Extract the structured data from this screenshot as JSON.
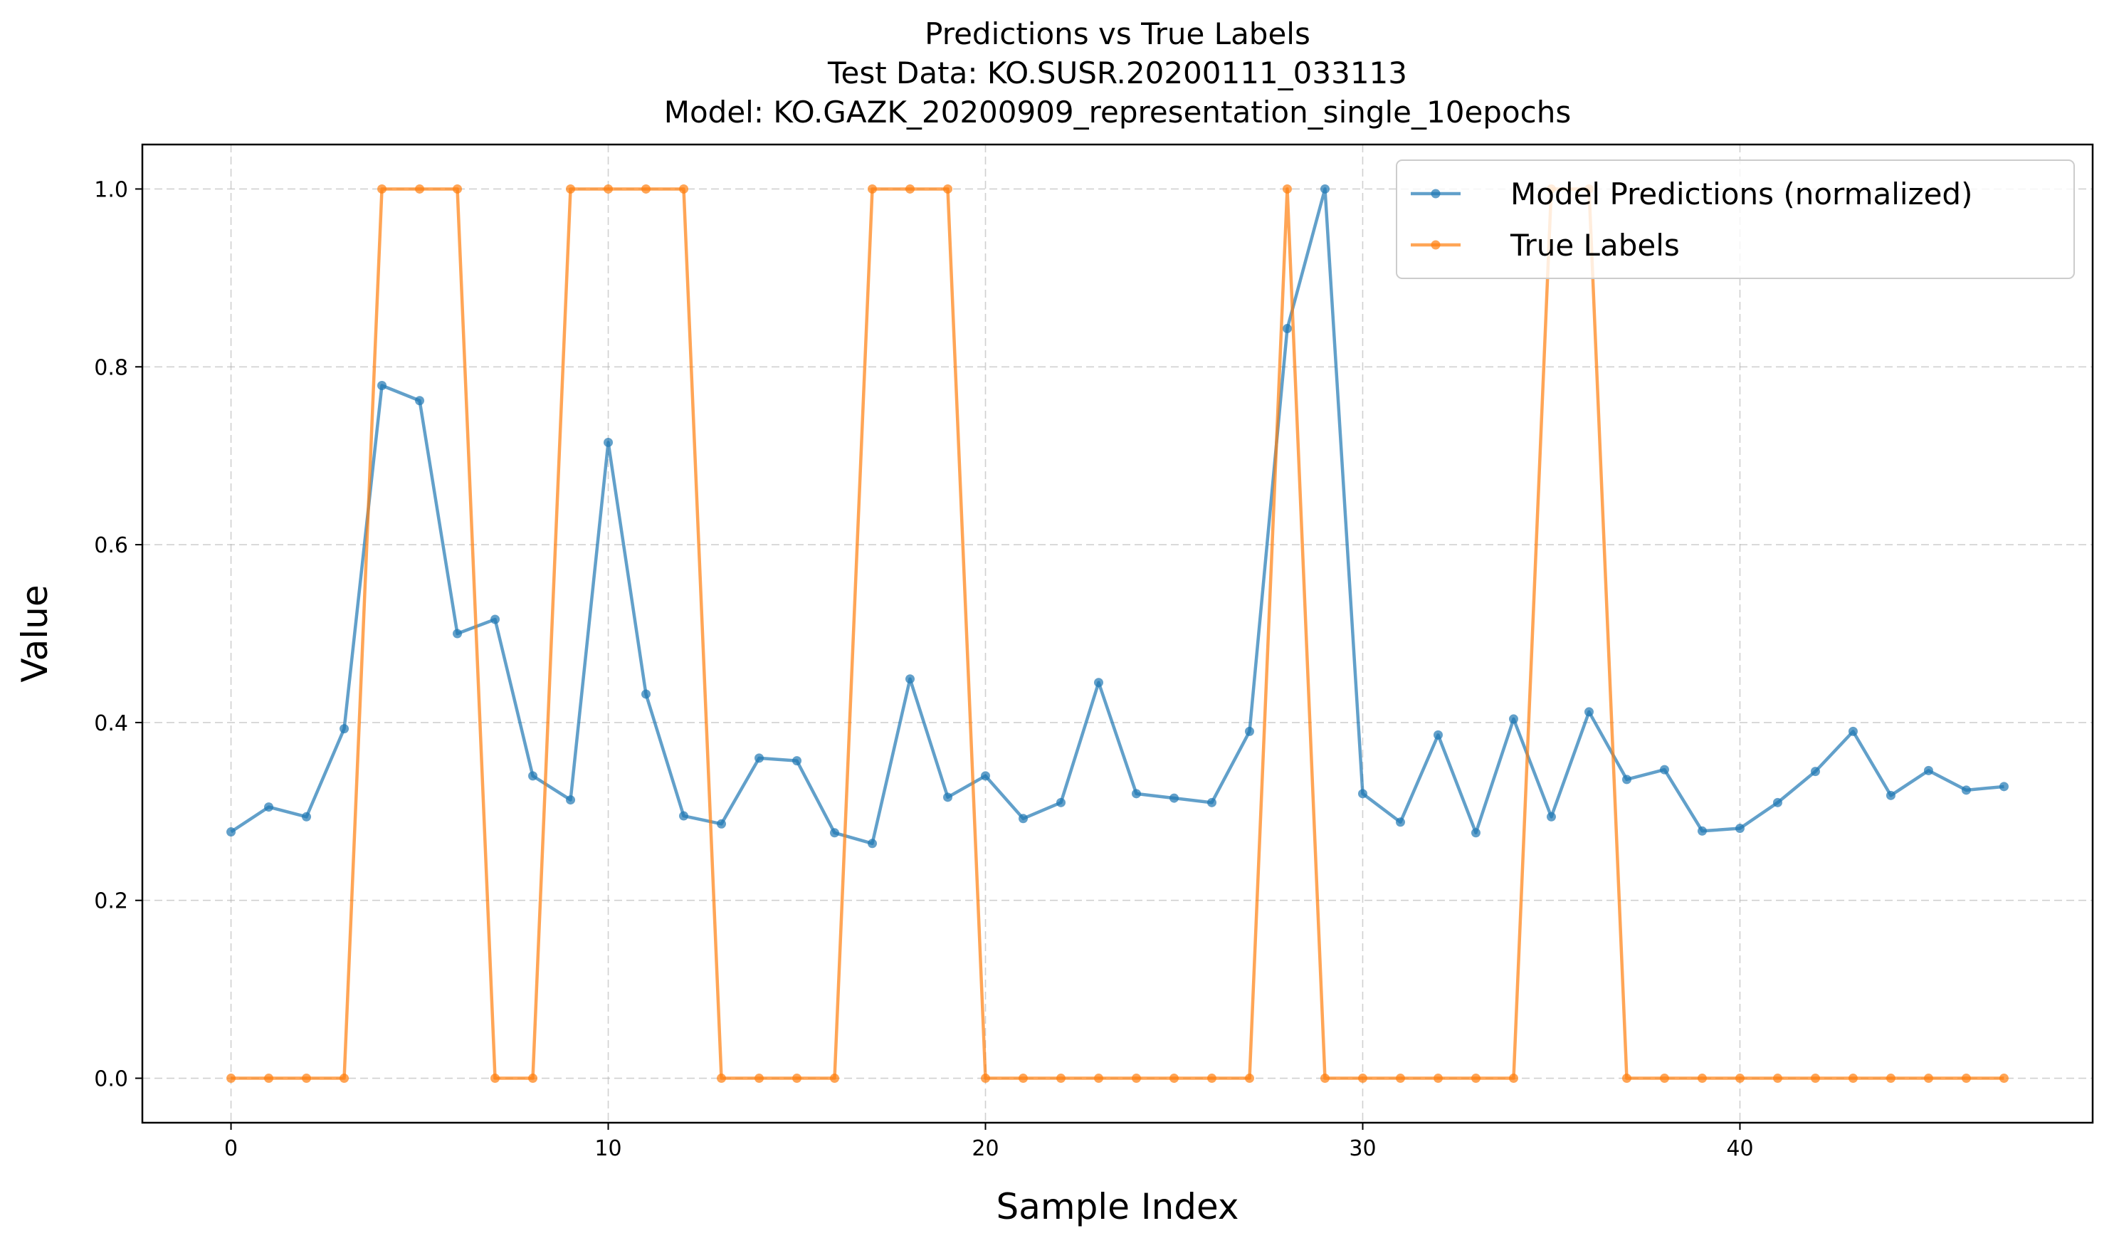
{
  "chart_data": {
    "type": "line",
    "title_lines": [
      "Predictions vs True Labels",
      "Test Data: KO.SUSR.20200111_033113",
      "Model: KO.GAZK_20200909_representation_single_10epochs"
    ],
    "xlabel": "Sample Index",
    "ylabel": "Value",
    "xlim": [
      -2.35,
      49.35
    ],
    "ylim": [
      -0.05,
      1.05
    ],
    "xticks": [
      0,
      10,
      20,
      30,
      40
    ],
    "yticks": [
      0.0,
      0.2,
      0.4,
      0.6,
      0.8,
      1.0
    ],
    "ytick_labels": [
      "0.0",
      "0.2",
      "0.4",
      "0.6",
      "0.8",
      "1.0"
    ],
    "xtick_labels": [
      "0",
      "10",
      "20",
      "30",
      "40"
    ],
    "grid": true,
    "legend_position": "top-right",
    "x": [
      0,
      1,
      2,
      3,
      4,
      5,
      6,
      7,
      8,
      9,
      10,
      11,
      12,
      13,
      14,
      15,
      16,
      17,
      18,
      19,
      20,
      21,
      22,
      23,
      24,
      25,
      26,
      27,
      28,
      29,
      30,
      31,
      32,
      33,
      34,
      35,
      36,
      37,
      38,
      39,
      40,
      41,
      42,
      43,
      44,
      45,
      46,
      47
    ],
    "series": [
      {
        "name": "Model Predictions (normalized)",
        "color": "#1f77b4",
        "values": [
          0.277,
          0.305,
          0.294,
          0.393,
          0.779,
          0.762,
          0.5,
          0.516,
          0.34,
          0.313,
          0.715,
          0.432,
          0.295,
          0.286,
          0.36,
          0.357,
          0.276,
          0.264,
          0.449,
          0.316,
          0.34,
          0.292,
          0.31,
          0.445,
          0.32,
          0.315,
          0.31,
          0.39,
          0.843,
          1.0,
          0.32,
          0.288,
          0.386,
          0.276,
          0.404,
          0.294,
          0.412,
          0.336,
          0.347,
          0.278,
          0.281,
          0.31,
          0.345,
          0.39,
          0.318,
          0.346,
          0.324,
          0.328
        ]
      },
      {
        "name": "True Labels",
        "color": "#ff7f0e",
        "values": [
          0,
          0,
          0,
          0,
          1,
          1,
          1,
          0,
          0,
          1,
          1,
          1,
          1,
          0,
          0,
          0,
          0,
          1,
          1,
          1,
          0,
          0,
          0,
          0,
          0,
          0,
          0,
          0,
          1,
          0,
          0,
          0,
          0,
          0,
          0,
          1,
          1,
          0,
          0,
          0,
          0,
          0,
          0,
          0,
          0,
          0,
          0,
          0
        ]
      }
    ]
  }
}
